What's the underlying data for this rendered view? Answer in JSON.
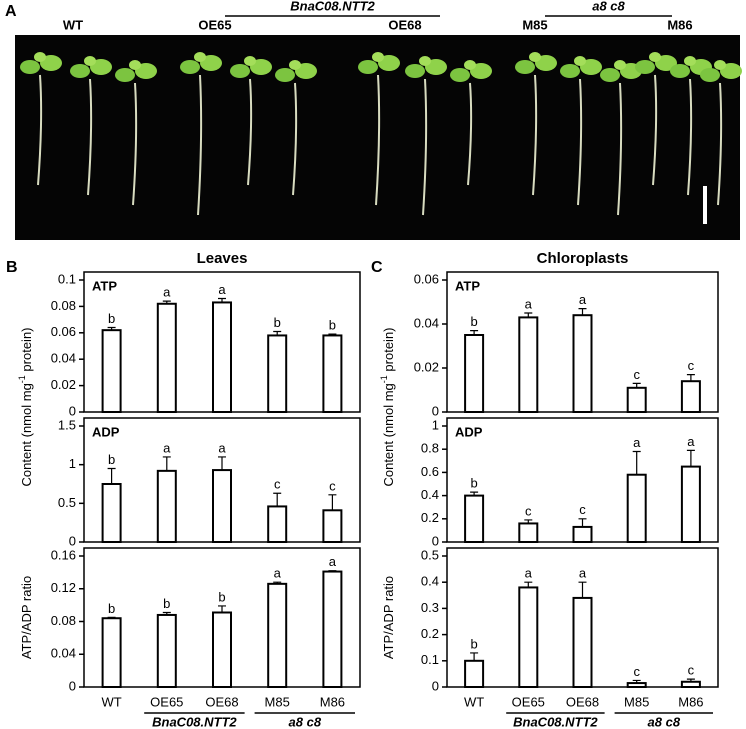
{
  "panel_labels": [
    "A",
    "B",
    "C"
  ],
  "photo": {
    "labels": [
      "WT",
      "OE65",
      "OE68",
      "M85",
      "M86"
    ],
    "groups": [
      "BnaC08.NTT2",
      "a8 c8"
    ]
  },
  "chart_data": [
    {
      "type": "bar",
      "title": "Leaves",
      "label": "ATP",
      "ylabel": [
        "Content (nmol mg",
        "-1",
        " protein)"
      ],
      "values": [
        0.062,
        0.082,
        0.083,
        0.058,
        0.058
      ],
      "errors": [
        0.002,
        0.002,
        0.003,
        0.003,
        0.001
      ],
      "annotations": [
        "b",
        "a",
        "a",
        "b",
        "b"
      ],
      "ylim": [
        0,
        0.1
      ],
      "yticks": [
        0,
        0.02,
        0.04,
        0.06,
        0.08,
        0.1
      ]
    },
    {
      "type": "bar",
      "label": "ADP",
      "values": [
        0.75,
        0.92,
        0.93,
        0.46,
        0.41
      ],
      "errors": [
        0.2,
        0.18,
        0.17,
        0.17,
        0.2
      ],
      "annotations": [
        "b",
        "a",
        "a",
        "c",
        "c"
      ],
      "ylim": [
        0,
        1.5
      ],
      "yticks": [
        0,
        0.5,
        1,
        1.5
      ]
    },
    {
      "type": "bar",
      "ylabel": [
        "ATP/ADP ratio"
      ],
      "categories": [
        "WT",
        "OE65",
        "OE68",
        "M85",
        "M86"
      ],
      "groups": [
        "BnaC08.NTT2",
        "a8 c8"
      ],
      "values": [
        0.084,
        0.088,
        0.091,
        0.126,
        0.141
      ],
      "errors": [
        0.001,
        0.003,
        0.008,
        0.002,
        0.001
      ],
      "annotations": [
        "b",
        "b",
        "b",
        "a",
        "a"
      ],
      "ylim": [
        0,
        0.16
      ],
      "yticks": [
        0,
        0.04,
        0.08,
        0.12,
        0.16
      ]
    },
    {
      "type": "bar",
      "title": "Chloroplasts",
      "label": "ATP",
      "ylabel": [
        "Content (nmol mg",
        "-1",
        " protein)"
      ],
      "values": [
        0.035,
        0.043,
        0.044,
        0.011,
        0.014
      ],
      "errors": [
        0.002,
        0.002,
        0.003,
        0.002,
        0.003
      ],
      "annotations": [
        "b",
        "a",
        "a",
        "c",
        "c"
      ],
      "ylim": [
        0,
        0.06
      ],
      "yticks": [
        0,
        0.02,
        0.04,
        0.06
      ]
    },
    {
      "type": "bar",
      "label": "ADP",
      "values": [
        0.4,
        0.16,
        0.13,
        0.58,
        0.65
      ],
      "errors": [
        0.03,
        0.03,
        0.07,
        0.2,
        0.14
      ],
      "annotations": [
        "b",
        "c",
        "c",
        "a",
        "a"
      ],
      "ylim": [
        0,
        1
      ],
      "yticks": [
        0,
        0.2,
        0.4,
        0.6,
        0.8,
        1
      ]
    },
    {
      "type": "bar",
      "ylabel": [
        "ATP/ADP ratio"
      ],
      "categories": [
        "WT",
        "OE65",
        "OE68",
        "M85",
        "M86"
      ],
      "groups": [
        "BnaC08.NTT2",
        "a8 c8"
      ],
      "values": [
        0.1,
        0.38,
        0.34,
        0.015,
        0.02
      ],
      "errors": [
        0.03,
        0.02,
        0.06,
        0.01,
        0.01
      ],
      "annotations": [
        "b",
        "a",
        "a",
        "c",
        "c"
      ],
      "ylim": [
        0,
        0.5
      ],
      "yticks": [
        0,
        0.1,
        0.2,
        0.3,
        0.4,
        0.5
      ]
    }
  ]
}
